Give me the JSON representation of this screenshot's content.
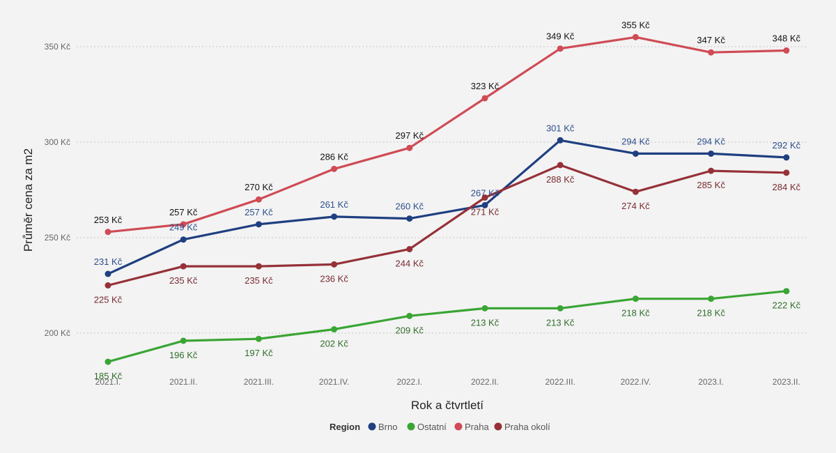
{
  "chart_data": {
    "type": "line",
    "title": "",
    "xlabel": "Rok a čtvrtletí",
    "ylabel": "Průměr cena za m2",
    "ylim": [
      180,
      360
    ],
    "yticks": [
      200,
      250,
      300,
      350
    ],
    "ytick_labels": [
      "200 Kč",
      "250 Kč",
      "300 Kč",
      "350 Kč"
    ],
    "grid": true,
    "categories": [
      "2021.I.",
      "2021.II.",
      "2021.III.",
      "2021.IV.",
      "2022.I.",
      "2022.II.",
      "2022.III.",
      "2022.IV.",
      "2023.I.",
      "2023.II."
    ],
    "legend": {
      "title": "Region",
      "position": "bottom-center"
    },
    "series": [
      {
        "name": "Brno",
        "color": "#1f3f80",
        "label_color": "#2d4f8c",
        "values": [
          231,
          249,
          257,
          261,
          260,
          267,
          301,
          294,
          294,
          292
        ],
        "labels": [
          "231 Kč",
          "249 Kč",
          "257 Kč",
          "261 Kč",
          "260 Kč",
          "267 Kč",
          "301 Kč",
          "294 Kč",
          "294 Kč",
          "292 Kč"
        ],
        "label_pos": [
          "above",
          "above",
          "above",
          "above",
          "above",
          "above",
          "above",
          "above",
          "above",
          "above"
        ]
      },
      {
        "name": "Ostatní",
        "color": "#3aa534",
        "label_color": "#2f6e2a",
        "values": [
          185,
          196,
          197,
          202,
          209,
          213,
          213,
          218,
          218,
          222
        ],
        "labels": [
          "185 Kč",
          "196 Kč",
          "197 Kč",
          "202 Kč",
          "209 Kč",
          "213 Kč",
          "213 Kč",
          "218 Kč",
          "218 Kč",
          "222 Kč"
        ],
        "label_pos": [
          "below",
          "below",
          "below",
          "below",
          "below",
          "below",
          "below",
          "below",
          "below",
          "below"
        ]
      },
      {
        "name": "Praha",
        "color": "#cf4b55",
        "label_color": "#111111",
        "values": [
          253,
          257,
          270,
          286,
          297,
          323,
          349,
          355,
          347,
          348
        ],
        "labels": [
          "253 Kč",
          "257 Kč",
          "270 Kč",
          "286 Kč",
          "297 Kč",
          "323 Kč",
          "349 Kč",
          "355 Kč",
          "347 Kč",
          "348 Kč"
        ],
        "label_pos": [
          "above",
          "above",
          "above",
          "above",
          "above",
          "above",
          "above",
          "above",
          "above",
          "above"
        ]
      },
      {
        "name": "Praha okolí",
        "color": "#963138",
        "label_color": "#7a2a2f",
        "values": [
          225,
          235,
          235,
          236,
          244,
          271,
          288,
          274,
          285,
          284
        ],
        "labels": [
          "225 Kč",
          "235 Kč",
          "235 Kč",
          "236 Kč",
          "244 Kč",
          "271 Kč",
          "288 Kč",
          "274 Kč",
          "285 Kč",
          "284 Kč"
        ],
        "label_pos": [
          "below",
          "below",
          "below",
          "below",
          "below",
          "below",
          "below",
          "below",
          "below",
          "below"
        ]
      }
    ]
  }
}
